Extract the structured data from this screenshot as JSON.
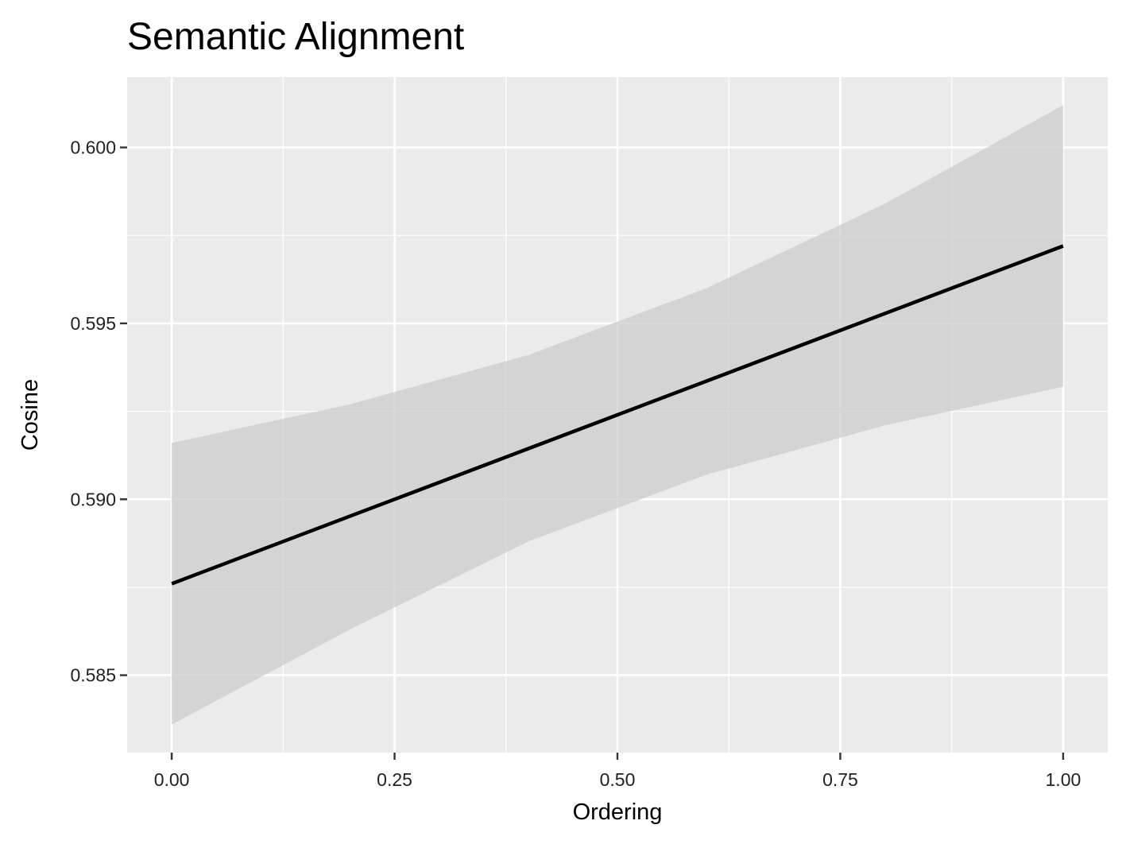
{
  "chart_data": {
    "type": "line",
    "title": "Semantic Alignment",
    "xlabel": "Ordering",
    "ylabel": "Cosine",
    "xlim": [
      -0.05,
      1.05
    ],
    "ylim": [
      0.5828,
      0.602
    ],
    "x_ticks": [
      0.0,
      0.25,
      0.5,
      0.75,
      1.0
    ],
    "x_tick_labels": [
      "0.00",
      "0.25",
      "0.50",
      "0.75",
      "1.00"
    ],
    "y_ticks": [
      0.585,
      0.59,
      0.595,
      0.6
    ],
    "y_tick_labels": [
      "0.585",
      "0.590",
      "0.595",
      "0.600"
    ],
    "grid": true,
    "series": [
      {
        "x": [
          0.0,
          1.0
        ],
        "y": [
          0.5876,
          0.5972
        ],
        "color": "#000000"
      }
    ],
    "confidence_band": {
      "x": [
        0.0,
        0.2,
        0.4,
        0.6,
        0.8,
        1.0
      ],
      "lower": [
        0.5836,
        0.5863,
        0.5888,
        0.5907,
        0.5921,
        0.5932
      ],
      "upper": [
        0.5916,
        0.5927,
        0.5941,
        0.596,
        0.5984,
        0.6012
      ],
      "color": "#cccccc"
    },
    "panel_background": "#ebebeb",
    "grid_color": "#ffffff"
  }
}
